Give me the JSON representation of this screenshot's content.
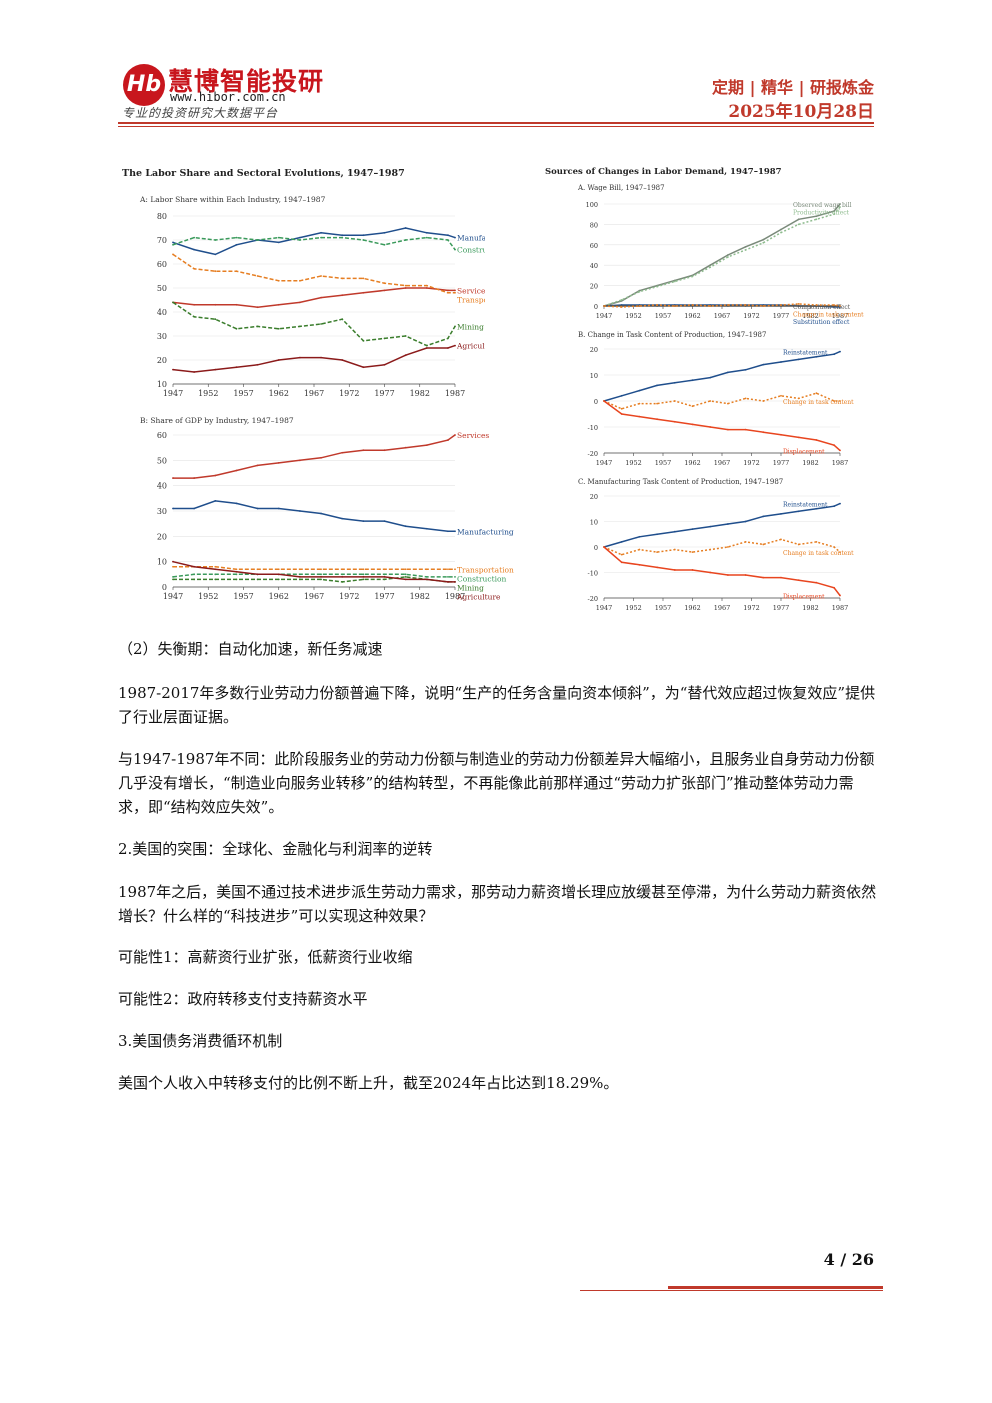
{
  "header": {
    "logo_mark": "Hb",
    "logo_name": "慧博智能投研",
    "logo_url": "www.hibor.com.cn",
    "logo_slogan": "专业的投资研究大数据平台",
    "tagline": "定期 | 精华 | 研报炼金",
    "date": "2025年10月28日"
  },
  "left_figure": {
    "title": "The Labor Share and Sectoral Evolutions, 1947–1987",
    "panel_a_title": "A: Labor Share within Each Industry, 1947–1987",
    "panel_b_title": "B: Share of GDP by Industry, 1947–1987"
  },
  "right_figure": {
    "title": "Sources of Changes in Labor Demand, 1947–1987",
    "panel_a_title": "A. Wage Bill, 1947–1987",
    "panel_b_title": "B. Change in Task Content of Production, 1947–1987",
    "panel_c_title": "C. Manufacturing Task Content of Production, 1947–1987"
  },
  "chart_data": [
    {
      "type": "line",
      "title": "A: Labor Share within Each Industry, 1947–1987",
      "x": [
        1947,
        1950,
        1953,
        1956,
        1959,
        1962,
        1965,
        1968,
        1971,
        1974,
        1977,
        1980,
        1983,
        1986,
        1987
      ],
      "xticks": [
        "1947",
        "1952",
        "1957",
        "1962",
        "1967",
        "1972",
        "1977",
        "1982",
        "1987"
      ],
      "ylim": [
        10,
        80
      ],
      "yticks": [
        "80",
        "70",
        "60",
        "50",
        "40",
        "30",
        "20",
        "10"
      ],
      "series": [
        {
          "name": "Manufacturing",
          "color": "#1f4e8c",
          "dash": "",
          "values": [
            69,
            66,
            64,
            68,
            70,
            69,
            71,
            73,
            72,
            72,
            73,
            75,
            73,
            72,
            71
          ]
        },
        {
          "name": "Construction",
          "color": "#3a9a5b",
          "dash": "4,2",
          "values": [
            68,
            71,
            70,
            71,
            70,
            71,
            70,
            71,
            71,
            70,
            68,
            70,
            71,
            70,
            66
          ]
        },
        {
          "name": "Services",
          "color": "#c0392b",
          "dash": "",
          "values": [
            44,
            43,
            43,
            43,
            42,
            43,
            44,
            46,
            47,
            48,
            49,
            50,
            50,
            49,
            49
          ]
        },
        {
          "name": "Transportation",
          "color": "#e67e22",
          "dash": "4,2",
          "values": [
            64,
            58,
            57,
            57,
            55,
            53,
            53,
            55,
            54,
            54,
            52,
            51,
            51,
            48,
            48
          ]
        },
        {
          "name": "Mining",
          "color": "#3a7d2c",
          "dash": "4,2",
          "values": [
            44,
            38,
            37,
            33,
            34,
            33,
            34,
            35,
            37,
            28,
            29,
            30,
            26,
            29,
            34
          ]
        },
        {
          "name": "Agriculture",
          "color": "#8b1a1a",
          "dash": "",
          "values": [
            16,
            15,
            16,
            17,
            18,
            20,
            21,
            21,
            20,
            17,
            18,
            22,
            25,
            25,
            26
          ]
        }
      ]
    },
    {
      "type": "line",
      "title": "B: Share of GDP by Industry, 1947–1987",
      "x": [
        1947,
        1950,
        1953,
        1956,
        1959,
        1962,
        1965,
        1968,
        1971,
        1974,
        1977,
        1980,
        1983,
        1986,
        1987
      ],
      "xticks": [
        "1947",
        "1952",
        "1957",
        "1962",
        "1967",
        "1972",
        "1977",
        "1982",
        "1987"
      ],
      "ylim": [
        0,
        60
      ],
      "yticks": [
        "60",
        "50",
        "40",
        "30",
        "20",
        "10",
        "0"
      ],
      "series": [
        {
          "name": "Services",
          "color": "#c0392b",
          "dash": "",
          "values": [
            43,
            43,
            44,
            46,
            48,
            49,
            50,
            51,
            53,
            54,
            54,
            55,
            56,
            58,
            60
          ]
        },
        {
          "name": "Manufacturing",
          "color": "#1f4e8c",
          "dash": "",
          "values": [
            31,
            31,
            34,
            33,
            31,
            31,
            30,
            29,
            27,
            26,
            26,
            24,
            23,
            22,
            22
          ]
        },
        {
          "name": "Transportation",
          "color": "#e67e22",
          "dash": "4,2",
          "values": [
            8,
            8,
            8,
            7,
            7,
            7,
            7,
            7,
            7,
            7,
            7,
            7,
            7,
            7,
            7
          ]
        },
        {
          "name": "Construction",
          "color": "#3a9a5b",
          "dash": "4,2",
          "values": [
            4,
            5,
            5,
            5,
            5,
            5,
            5,
            5,
            5,
            5,
            5,
            5,
            4,
            4,
            4
          ]
        },
        {
          "name": "Mining",
          "color": "#3a7d2c",
          "dash": "4,2",
          "values": [
            3,
            3,
            3,
            3,
            3,
            3,
            3,
            3,
            2,
            3,
            3,
            4,
            3,
            2,
            2
          ]
        },
        {
          "name": "Agriculture",
          "color": "#8b1a1a",
          "dash": "",
          "values": [
            10,
            8,
            7,
            6,
            5,
            5,
            4,
            4,
            4,
            4,
            4,
            3,
            3,
            2,
            2
          ]
        }
      ]
    },
    {
      "type": "line",
      "title": "A. Wage Bill, 1947–1987",
      "x": [
        1947,
        1950,
        1953,
        1956,
        1959,
        1962,
        1965,
        1968,
        1971,
        1974,
        1977,
        1980,
        1983,
        1986,
        1987
      ],
      "xticks": [
        "1947",
        "1952",
        "1957",
        "1962",
        "1967",
        "1972",
        "1977",
        "1982",
        "1987"
      ],
      "ylim": [
        0,
        100
      ],
      "yticks": [
        "100",
        "80",
        "60",
        "40",
        "20",
        "0"
      ],
      "series": [
        {
          "name": "Observed wage bill",
          "color": "#7a8a7a",
          "dash": "",
          "values": [
            0,
            5,
            15,
            20,
            25,
            30,
            40,
            50,
            58,
            65,
            75,
            85,
            88,
            93,
            100
          ]
        },
        {
          "name": "Productivity effect",
          "color": "#8fbc8f",
          "dash": "2,2",
          "values": [
            0,
            6,
            14,
            19,
            24,
            29,
            38,
            48,
            55,
            62,
            72,
            80,
            85,
            90,
            97
          ]
        },
        {
          "name": "Substitution effect",
          "color": "#1f4e8c",
          "dash": "",
          "values": [
            0,
            1,
            1,
            1,
            1,
            1,
            1,
            1,
            1,
            1,
            1,
            0,
            0,
            -1,
            -1
          ]
        },
        {
          "name": "Composition effect",
          "color": "#555555",
          "dash": "",
          "values": [
            0,
            0,
            0,
            0,
            0,
            0,
            0,
            0,
            0,
            0,
            0,
            0,
            0,
            0,
            0
          ]
        },
        {
          "name": "Change in task content",
          "color": "#e67e22",
          "dash": "2,2",
          "values": [
            0,
            -1,
            0,
            1,
            0,
            1,
            0,
            1,
            1,
            0,
            1,
            2,
            1,
            1,
            0
          ]
        }
      ]
    },
    {
      "type": "line",
      "title": "B. Change in Task Content of Production, 1947–1987",
      "x": [
        1947,
        1950,
        1953,
        1956,
        1959,
        1962,
        1965,
        1968,
        1971,
        1974,
        1977,
        1980,
        1983,
        1986,
        1987
      ],
      "xticks": [
        "1947",
        "1952",
        "1957",
        "1962",
        "1967",
        "1972",
        "1977",
        "1982",
        "1987"
      ],
      "ylim": [
        -20,
        20
      ],
      "yticks": [
        "20",
        "10",
        "0",
        "-10",
        "-20"
      ],
      "series": [
        {
          "name": "Reinstatement",
          "color": "#1f4e8c",
          "dash": "",
          "values": [
            0,
            2,
            4,
            6,
            7,
            8,
            9,
            11,
            12,
            14,
            15,
            16,
            17,
            18,
            19
          ]
        },
        {
          "name": "Change in task content",
          "color": "#e67e22",
          "dash": "2,2",
          "values": [
            0,
            -3,
            -1,
            -1,
            0,
            -2,
            0,
            -1,
            1,
            0,
            2,
            1,
            3,
            0,
            0
          ]
        },
        {
          "name": "Displacement",
          "color": "#e8451f",
          "dash": "",
          "values": [
            0,
            -5,
            -6,
            -7,
            -8,
            -9,
            -10,
            -11,
            -11,
            -12,
            -13,
            -14,
            -15,
            -17,
            -19
          ]
        }
      ]
    },
    {
      "type": "line",
      "title": "C. Manufacturing Task Content of Production, 1947–1987",
      "x": [
        1947,
        1950,
        1953,
        1956,
        1959,
        1962,
        1965,
        1968,
        1971,
        1974,
        1977,
        1980,
        1983,
        1986,
        1987
      ],
      "xticks": [
        "1947",
        "1952",
        "1957",
        "1962",
        "1967",
        "1972",
        "1977",
        "1982",
        "1987"
      ],
      "ylim": [
        -20,
        20
      ],
      "yticks": [
        "20",
        "10",
        "0",
        "-10",
        "-20"
      ],
      "series": [
        {
          "name": "Reinstatement",
          "color": "#1f4e8c",
          "dash": "",
          "values": [
            0,
            2,
            4,
            5,
            6,
            7,
            8,
            9,
            10,
            12,
            13,
            14,
            15,
            16,
            17
          ]
        },
        {
          "name": "Change in task content",
          "color": "#e67e22",
          "dash": "2,2",
          "values": [
            0,
            -3,
            -1,
            -2,
            -1,
            -2,
            -1,
            0,
            2,
            1,
            3,
            1,
            2,
            0,
            -2
          ]
        },
        {
          "name": "Displacement",
          "color": "#e8451f",
          "dash": "",
          "values": [
            0,
            -6,
            -7,
            -8,
            -9,
            -9,
            -10,
            -11,
            -11,
            -12,
            -12,
            -13,
            -14,
            -16,
            -19
          ]
        }
      ]
    }
  ],
  "body": {
    "p1": "（2）失衡期：自动化加速，新任务减速",
    "p2": "1987-2017年多数行业劳动力份额普遍下降，说明“生产的任务含量向资本倾斜”，为“替代效应超过恢复效应”提供了行业层面证据。",
    "p3": "与1947-1987年不同：此阶段服务业的劳动力份额与制造业的劳动力份额差异大幅缩小，且服务业自身劳动力份额几乎没有增长，“制造业向服务业转移”的结构转型，不再能像此前那样通过“劳动力扩张部门”推动整体劳动力需求，即“结构效应失效”。",
    "p4": "2.美国的突围：全球化、金融化与利润率的逆转",
    "p5": "1987年之后，美国不通过技术进步派生劳动力需求，那劳动力薪资增长理应放缓甚至停滞，为什么劳动力薪资依然增长？什么样的“科技进步”可以实现这种效果？",
    "p6": "可能性1：高薪资行业扩张，低薪资行业收缩",
    "p7": "可能性2：政府转移支付支持薪资水平",
    "p8": "3.美国债务消费循环机制",
    "p9": "美国个人收入中转移支付的比例不断上升，截至2024年占比达到18.29%。"
  },
  "footer": {
    "page": "4 / 26"
  }
}
